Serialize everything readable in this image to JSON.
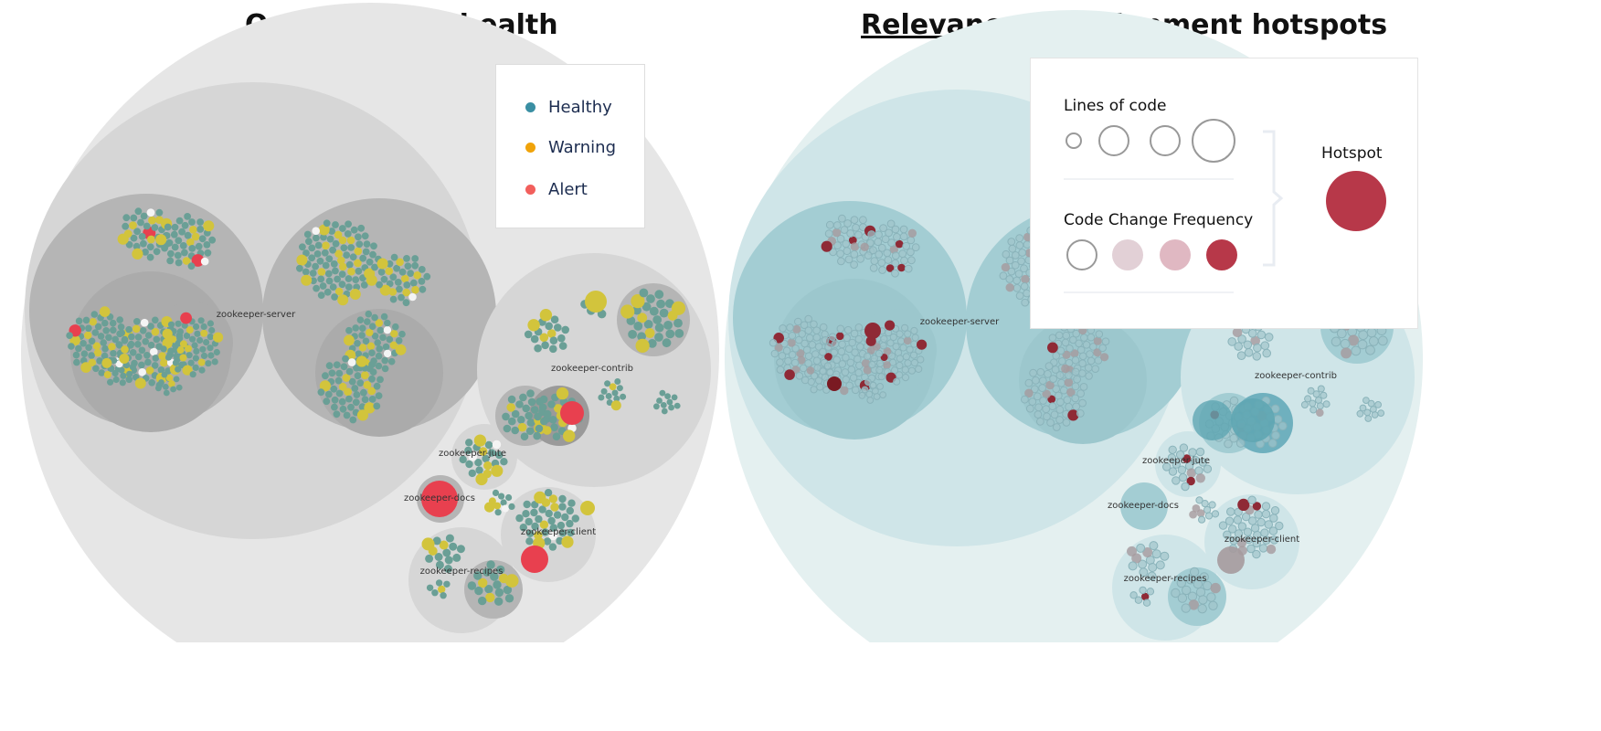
{
  "chart_data": {
    "type": "circle-packing",
    "panels": [
      {
        "title_underlined": "Quality",
        "title_rest": ": code health",
        "legend": [
          {
            "label": "Healthy",
            "color": "#3a8fa3"
          },
          {
            "label": "Warning",
            "color": "#f0a30a"
          },
          {
            "label": "Alert",
            "color": "#f25f5c"
          }
        ],
        "modules": [
          "zookeeper-server",
          "zookeeper-contrib",
          "zookeeper-jute",
          "zookeeper-docs",
          "zookeeper-client",
          "zookeeper-recipes"
        ],
        "leaf_colors": {
          "healthy": "#6a9f96",
          "warning": "#d2c43c",
          "alert": "#e8404f",
          "unscored": "#f4f4f4"
        }
      },
      {
        "title_underlined": "Relevance",
        "title_rest": ": development hotspots",
        "legend": {
          "size_title": "Lines of code",
          "color_title": "Code Change Frequency",
          "frequency_colors": [
            "#ffffff",
            "#e2d0d6",
            "#e0b8c2",
            "#b73849"
          ],
          "hotspot_label": "Hotspot",
          "hotspot_color": "#b73849"
        },
        "modules": [
          "zookeeper-server",
          "zookeeper-contrib",
          "zookeeper-jute",
          "zookeeper-docs",
          "zookeeper-client",
          "zookeeper-recipes"
        ]
      }
    ]
  }
}
